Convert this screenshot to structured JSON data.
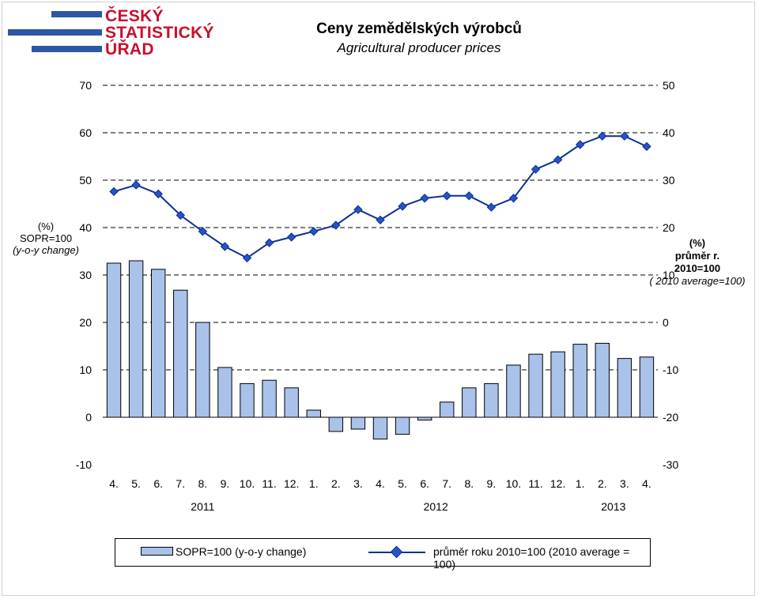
{
  "header": {
    "logo_lines": [
      "ČESKÝ",
      "STATISTICKÝ",
      "ÚŘAD"
    ],
    "title": "Ceny zemědělských výrobců",
    "subtitle": "Agricultural producer prices"
  },
  "axes": {
    "left_label_lines": [
      "(%)",
      "SOPR=100",
      "(y-o-y change)"
    ],
    "right_label_lines": [
      "(%)",
      "průměr r.",
      "2010=100",
      "( 2010 average=100)"
    ],
    "left_ticks": [
      "70",
      "60",
      "50",
      "40",
      "30",
      "20",
      "10",
      "0",
      "-10"
    ],
    "right_ticks": [
      "50",
      "40",
      "30",
      "20",
      "10",
      "0",
      "-10",
      "-20",
      "-30"
    ]
  },
  "legend": {
    "bar_label": "SOPR=100 (y-o-y change)",
    "line_label": "průměr roku 2010=100 (2010 average = 100)"
  },
  "colors": {
    "bar_fill": "#a9c2ea",
    "line": "#0b2f93",
    "marker": "#2754c5",
    "logo_blue": "#2c57a6",
    "logo_red": "#c8102e"
  },
  "chart_data": {
    "type": "bar+line",
    "categories": [
      "4.",
      "5.",
      "6.",
      "7.",
      "8.",
      "9.",
      "10.",
      "11.",
      "12.",
      "1.",
      "2.",
      "3.",
      "4.",
      "5.",
      "6.",
      "7.",
      "8.",
      "9.",
      "10.",
      "11.",
      "12.",
      "1.",
      "2.",
      "3.",
      "4."
    ],
    "year_labels": [
      {
        "label": "2011",
        "start": 0,
        "end": 8
      },
      {
        "label": "2012",
        "start": 9,
        "end": 20
      },
      {
        "label": "2013",
        "start": 21,
        "end": 24
      }
    ],
    "ylim_left": [
      -10,
      70
    ],
    "ylim_right": [
      -30,
      50
    ],
    "grid": "dashed horizontal",
    "legend_position": "bottom",
    "series": [
      {
        "name": "SOPR=100 (y-o-y change)",
        "kind": "bar",
        "axis": "left",
        "values": [
          32.5,
          33.0,
          31.2,
          26.8,
          20.0,
          10.5,
          7.1,
          7.8,
          6.2,
          1.5,
          -3.0,
          -2.5,
          -4.6,
          -3.6,
          -0.6,
          3.2,
          6.2,
          7.1,
          11.0,
          13.3,
          13.8,
          15.4,
          15.6,
          12.4,
          12.7
        ]
      },
      {
        "name": "průměr roku 2010=100 (2010 average = 100)",
        "kind": "line",
        "axis": "right",
        "values": [
          27.6,
          29.0,
          27.1,
          22.6,
          19.2,
          16.0,
          13.6,
          16.8,
          18.0,
          19.2,
          20.5,
          23.8,
          21.6,
          24.5,
          26.2,
          26.7,
          26.7,
          24.3,
          26.2,
          32.3,
          34.3,
          37.5,
          39.3,
          39.3,
          37.1
        ]
      }
    ]
  }
}
